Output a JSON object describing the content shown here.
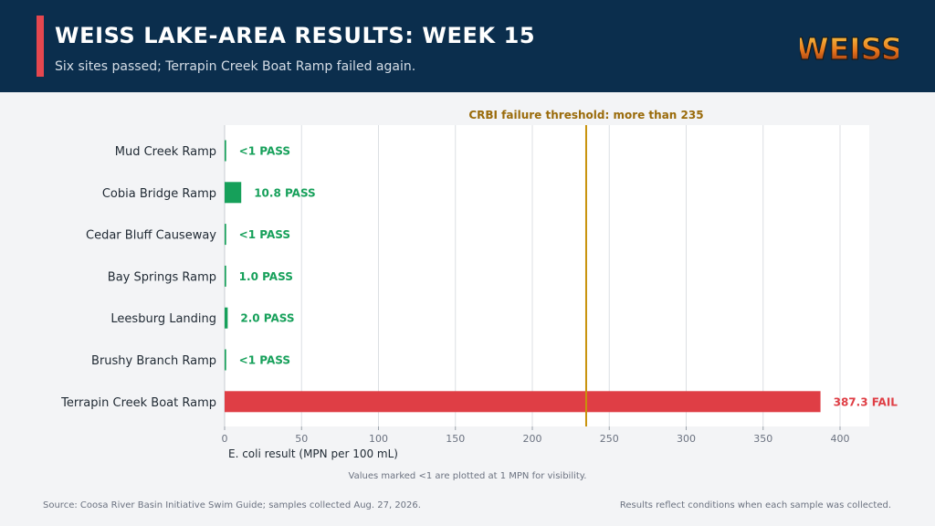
{
  "header": {
    "title": "WEISS LAKE-AREA RESULTS: WEEK 15",
    "subtitle": "Six sites passed; Terrapin Creek Boat Ramp failed again.",
    "logo_text": "WEISS",
    "background_color": "#0b2e4d",
    "accent_color": "#e5474f"
  },
  "chart_data": {
    "type": "bar",
    "orientation": "horizontal",
    "categories": [
      "Mud Creek Ramp",
      "Cobia Bridge Ramp",
      "Cedar Bluff Causeway",
      "Bay Springs Ramp",
      "Leesburg Landing",
      "Brushy Branch Ramp",
      "Terrapin Creek Boat Ramp"
    ],
    "values": [
      1,
      10.8,
      1,
      1.0,
      2.0,
      1,
      387.3
    ],
    "value_labels": [
      "<1",
      "10.8",
      "<1",
      "1.0",
      "2.0",
      "<1",
      "387.3"
    ],
    "status": [
      "PASS",
      "PASS",
      "PASS",
      "PASS",
      "PASS",
      "PASS",
      "FAIL"
    ],
    "xlabel": "E. coli result (MPN per 100 mL)",
    "xlim": [
      0,
      420
    ],
    "xticks": [
      0,
      50,
      100,
      150,
      200,
      250,
      300,
      350,
      400
    ],
    "grid": true,
    "threshold": {
      "value": 235,
      "label": "CRBI failure threshold: more than 235",
      "color": "#c8920a"
    },
    "colors": {
      "pass": "#16a05a",
      "fail": "#df3e45",
      "threshold_label": "#9a6b0b"
    },
    "note": "Values marked <1 are plotted at 1 MPN for visibility."
  },
  "footer": {
    "source": "Source: Coosa River Basin Initiative Swim Guide; samples collected Aug. 27, 2026.",
    "disclaimer": "Results reflect conditions when each sample was collected."
  }
}
